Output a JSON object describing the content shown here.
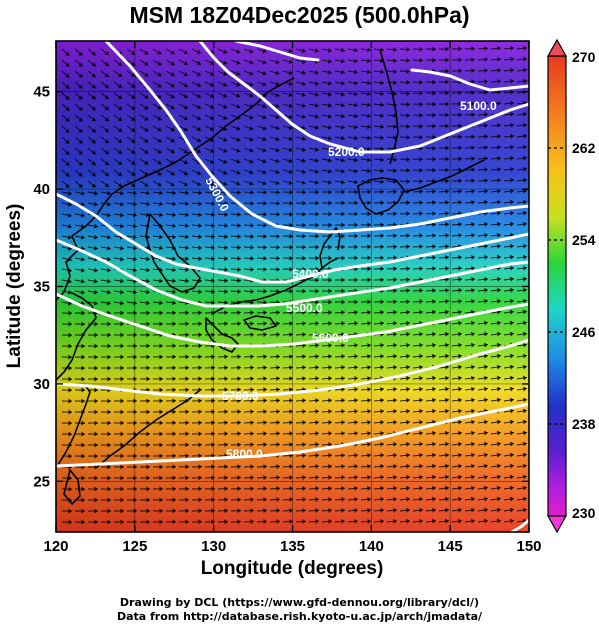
{
  "title": "MSM 18Z04Dec2025 (500.0hPa)",
  "axes": {
    "xlabel": "Longitude (degrees)",
    "ylabel": "Latitude  (degrees)",
    "xticks": [
      "120",
      "125",
      "130",
      "135",
      "140",
      "145",
      "150"
    ],
    "yticks": [
      "25",
      "30",
      "35",
      "40",
      "45"
    ],
    "xrange": [
      120,
      150
    ],
    "yrange": [
      22.4,
      47.6
    ]
  },
  "colorbar": {
    "range": [
      230,
      270
    ],
    "ticks": [
      "270",
      "262",
      "254",
      "246",
      "238",
      "230"
    ],
    "colors_top_to_bottom": [
      "#e83a1e",
      "#f47a1e",
      "#f6c21a",
      "#c8e01e",
      "#2ad63a",
      "#1ed6c8",
      "#1e8ae6",
      "#2232c8",
      "#5a1ed0",
      "#b01ee0",
      "#e01ec8"
    ]
  },
  "contours": {
    "levels": [
      {
        "label": "5100.0"
      },
      {
        "label": "5200.0"
      },
      {
        "label": "5300.0"
      },
      {
        "label": "5400.0"
      },
      {
        "label": "5500.0"
      },
      {
        "label": "5600.0"
      },
      {
        "label": "5700.0"
      },
      {
        "label": "5800.0"
      }
    ]
  },
  "credits": {
    "line1": "Drawing by DCL (https://www.gfd-dennou.org/library/dcl/)",
    "line2": "Data from http://database.rish.kyoto-u.ac.jp/arch/jmadata/"
  }
}
